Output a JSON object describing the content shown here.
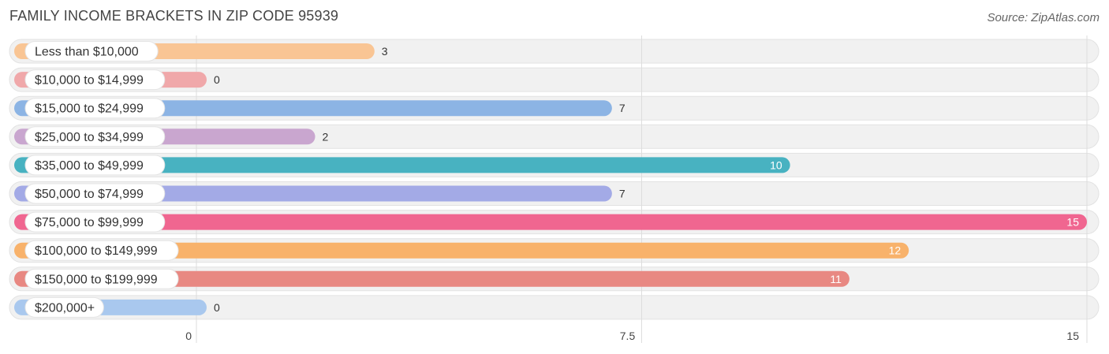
{
  "title": "FAMILY INCOME BRACKETS IN ZIP CODE 95939",
  "source": "Source: ZipAtlas.com",
  "chart_data": {
    "type": "bar",
    "orientation": "horizontal",
    "categories": [
      "Less than $10,000",
      "$10,000 to $14,999",
      "$15,000 to $24,999",
      "$25,000 to $34,999",
      "$35,000 to $49,999",
      "$50,000 to $74,999",
      "$75,000 to $99,999",
      "$100,000 to $149,999",
      "$150,000 to $199,999",
      "$200,000+"
    ],
    "values": [
      3,
      0,
      7,
      2,
      10,
      7,
      15,
      12,
      11,
      0
    ],
    "colors": [
      "#f9c594",
      "#f0a8aa",
      "#8cb4e4",
      "#c9a6cf",
      "#48b2c1",
      "#a3aae6",
      "#f06690",
      "#f8b26b",
      "#e88882",
      "#a9c8ee"
    ],
    "xlim": [
      0,
      15
    ],
    "x_ticks": [
      "0",
      "7.5",
      "15"
    ],
    "grid": true
  }
}
